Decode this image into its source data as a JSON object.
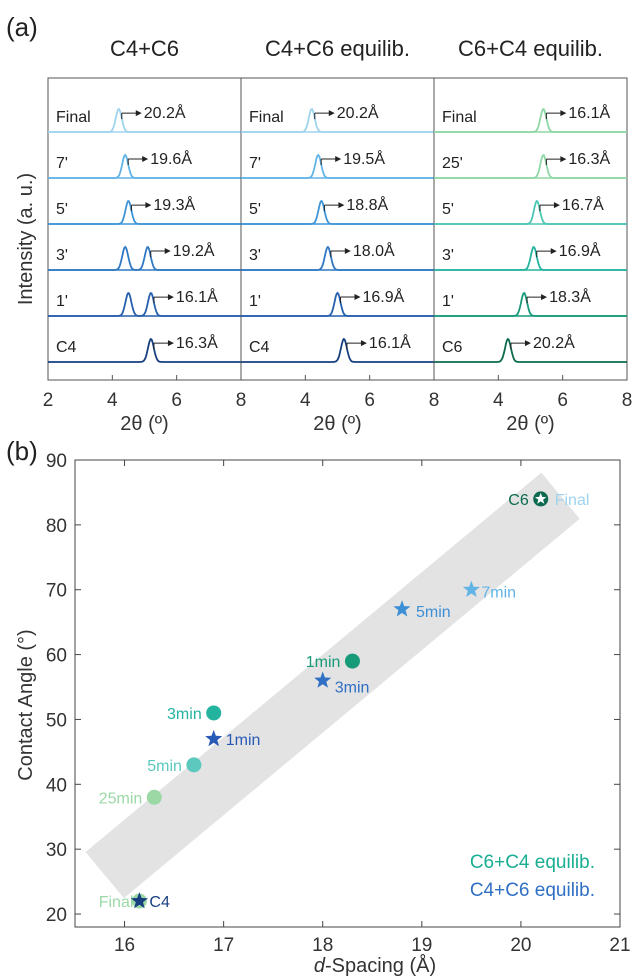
{
  "chart_data": [
    {
      "type": "line",
      "panel_label": "(a)",
      "ylabel": "Intensity (a. u.)",
      "xlabel": "2θ (º)",
      "xlim": [
        2,
        8
      ],
      "xticks": [
        "2",
        "4",
        "6",
        "8"
      ],
      "panels": [
        {
          "title": "C4+C6",
          "traces": [
            {
              "label": "Final",
              "peaks": [
                4.2
              ],
              "d_label": "20.2Å",
              "color": "#9fd3ee"
            },
            {
              "label": "7'",
              "peaks": [
                4.4
              ],
              "d_label": "19.6Å",
              "color": "#62b4e6"
            },
            {
              "label": "5'",
              "peaks": [
                4.5
              ],
              "d_label": "19.3Å",
              "color": "#3d95d8"
            },
            {
              "label": "3'",
              "peaks": [
                4.4,
                5.1
              ],
              "d_label": "19.2Å",
              "color": "#2f78c4"
            },
            {
              "label": "1'",
              "peaks": [
                4.5,
                5.2
              ],
              "d_label": "16.1Å",
              "color": "#255fae"
            },
            {
              "label": "C4",
              "peaks": [
                5.2
              ],
              "d_label": "16.3Å",
              "color": "#173f80"
            }
          ]
        },
        {
          "title": "C4+C6 equilib.",
          "traces": [
            {
              "label": "Final",
              "peaks": [
                4.2
              ],
              "d_label": "20.2Å",
              "color": "#9fd3ee"
            },
            {
              "label": "7'",
              "peaks": [
                4.4
              ],
              "d_label": "19.5Å",
              "color": "#62b4e6"
            },
            {
              "label": "5'",
              "peaks": [
                4.5
              ],
              "d_label": "18.8Å",
              "color": "#3d95d8"
            },
            {
              "label": "3'",
              "peaks": [
                4.7
              ],
              "d_label": "18.0Å",
              "color": "#2f78c4"
            },
            {
              "label": "1'",
              "peaks": [
                5.0
              ],
              "d_label": "16.9Å",
              "color": "#255fae"
            },
            {
              "label": "C4",
              "peaks": [
                5.2
              ],
              "d_label": "16.1Å",
              "color": "#173f80"
            }
          ]
        },
        {
          "title": "C6+C4 equilib.",
          "traces": [
            {
              "label": "Final",
              "peaks": [
                5.4
              ],
              "d_label": "16.1Å",
              "color": "#8fd8a6"
            },
            {
              "label": "25'",
              "peaks": [
                5.4
              ],
              "d_label": "16.3Å",
              "color": "#8fd8a6"
            },
            {
              "label": "5'",
              "peaks": [
                5.2
              ],
              "d_label": "16.7Å",
              "color": "#4cc5b2"
            },
            {
              "label": "3'",
              "peaks": [
                5.1
              ],
              "d_label": "16.9Å",
              "color": "#24b39e"
            },
            {
              "label": "1'",
              "peaks": [
                4.8
              ],
              "d_label": "18.3Å",
              "color": "#179a78"
            },
            {
              "label": "C6",
              "peaks": [
                4.3
              ],
              "d_label": "20.2Å",
              "color": "#0c6a4e"
            }
          ]
        }
      ]
    },
    {
      "type": "scatter",
      "panel_label": "(b)",
      "xlabel_italic": "d",
      "xlabel_rest": "-Spacing (Å)",
      "ylabel": "Contact Angle (°)",
      "xlim": [
        15.5,
        21
      ],
      "ylim": [
        18,
        90
      ],
      "xticks": [
        16,
        17,
        18,
        19,
        20,
        21
      ],
      "yticks": [
        20,
        30,
        40,
        50,
        60,
        70,
        80,
        90
      ],
      "band": {
        "from": [
          15.8,
          26
        ],
        "to": [
          20.4,
          84.5
        ],
        "color": "#e3e3e3"
      },
      "series": [
        {
          "name": "C6+C4 equilib.",
          "marker": "circle",
          "legend_color": "#1aae92",
          "points": [
            {
              "x": 20.2,
              "y": 84,
              "label": "C6",
              "color": "#0c6a4e",
              "label_color": "#0c6a4e"
            },
            {
              "x": 18.3,
              "y": 59,
              "label": "1min",
              "color": "#179a78",
              "label_color": "#179a78"
            },
            {
              "x": 16.9,
              "y": 51,
              "label": "3min",
              "color": "#24b39e",
              "label_color": "#24b39e"
            },
            {
              "x": 16.7,
              "y": 43,
              "label": "5min",
              "color": "#5cc8be",
              "label_color": "#5cc8be"
            },
            {
              "x": 16.3,
              "y": 38,
              "label": "25min",
              "color": "#9cd8a6",
              "label_color": "#9cd8a6"
            },
            {
              "x": 16.15,
              "y": 22,
              "label": "Final",
              "color": "#9cd8a6",
              "label_color": "#9cd8a6"
            }
          ]
        },
        {
          "name": "C4+C6 equilib.",
          "marker": "star",
          "legend_color": "#2f6fc4",
          "points": [
            {
              "x": 16.15,
              "y": 22,
              "label": "C4",
              "color": "#173f80",
              "label_color": "#173f80"
            },
            {
              "x": 16.9,
              "y": 47,
              "label": "1min",
              "color": "#2a5ab8",
              "label_color": "#2a5ab8"
            },
            {
              "x": 18.0,
              "y": 56,
              "label": "3min",
              "color": "#2f6fc4",
              "label_color": "#2f6fc4"
            },
            {
              "x": 18.8,
              "y": 67,
              "label": "5min",
              "color": "#3d8fd6",
              "label_color": "#3d8fd6"
            },
            {
              "x": 19.5,
              "y": 70,
              "label": "7min",
              "color": "#62b4e6",
              "label_color": "#62b4e6"
            },
            {
              "x": 20.2,
              "y": 84,
              "label": "Final",
              "color": "#9fd3ee",
              "label_color": "#9fd3ee"
            }
          ]
        }
      ]
    }
  ]
}
